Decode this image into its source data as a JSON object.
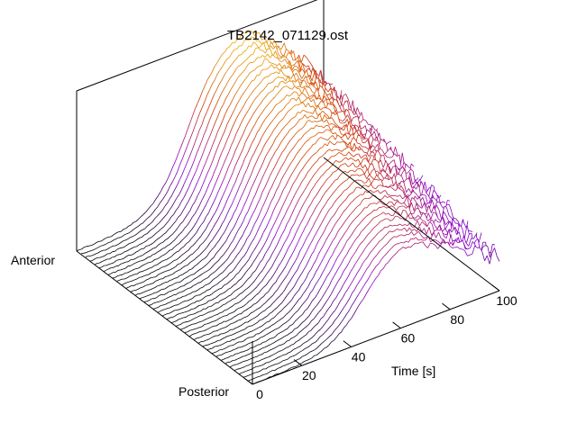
{
  "chart_data": {
    "type": "surface-3d",
    "title": "TB2142_071129.ost",
    "xlabel": "Time [s]",
    "ylabel_anterior": "Anterior",
    "ylabel_posterior": "Posterior",
    "x_ticks": [
      "0",
      "20",
      "40",
      "60",
      "80",
      "100"
    ],
    "xlim": [
      0,
      100
    ],
    "n_traces": 40,
    "n_samples": 100,
    "profile": {
      "baseline_before_x": 25,
      "rise_midpoint_x": 45,
      "plateau_height_relative": 1.0,
      "anterior_peak_time": 68,
      "posterior_peak_time": 60,
      "noise_at_late_times": "high"
    },
    "colormap": [
      "#000000",
      "#8a00d0",
      "#d03a00",
      "#f0c000"
    ],
    "grid": false,
    "box": true
  }
}
